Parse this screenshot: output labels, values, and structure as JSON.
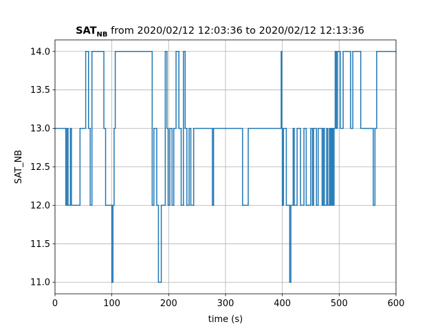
{
  "chart_data": {
    "type": "line",
    "step": true,
    "title": {
      "main": "SAT",
      "subscript": "NB",
      "rest": " from 2020/02/12 12:03:36 to 2020/02/12 12:13:36"
    },
    "xlabel": "time (s)",
    "ylabel": "SAT_NB",
    "xlim": [
      0,
      600
    ],
    "ylim": [
      10.85,
      14.15
    ],
    "xticks": [
      0,
      100,
      200,
      300,
      400,
      500,
      600
    ],
    "yticks": [
      11.0,
      11.5,
      12.0,
      12.5,
      13.0,
      13.5,
      14.0
    ],
    "grid": true,
    "color": "#1f77b4",
    "x": [
      0,
      19,
      21,
      23,
      27,
      29,
      36,
      44,
      54,
      59,
      62,
      65,
      68,
      86,
      89,
      92,
      100,
      102,
      104,
      106,
      109,
      118,
      171,
      174,
      179,
      182,
      187,
      194,
      197,
      199,
      202,
      206,
      209,
      213,
      218,
      222,
      226,
      229,
      232,
      236,
      239,
      244,
      253,
      275,
      277,
      279,
      330,
      340,
      398,
      399,
      400,
      402,
      404,
      407,
      413,
      415,
      417,
      419,
      421,
      426,
      429,
      432,
      435,
      438,
      442,
      450,
      453,
      455,
      460,
      463,
      467,
      470,
      472,
      474,
      478,
      480,
      483,
      484,
      485,
      487,
      488,
      490,
      491,
      493,
      495,
      497,
      502,
      504,
      507,
      514,
      520,
      524,
      526,
      529,
      534,
      538,
      560,
      563,
      566,
      583,
      600
    ],
    "y": [
      13,
      12,
      13,
      12,
      13,
      12,
      12,
      13,
      14,
      13,
      12,
      14,
      14,
      13,
      12,
      12,
      11,
      12,
      13,
      14,
      14,
      14,
      12,
      13,
      12,
      11,
      12,
      14,
      13,
      12,
      13,
      12,
      13,
      14,
      13,
      12,
      14,
      13,
      12,
      13,
      12,
      13,
      13,
      13,
      12,
      13,
      12,
      13,
      14,
      13,
      12,
      13,
      13,
      12,
      11,
      12,
      12,
      13,
      12,
      13,
      13,
      12,
      12,
      13,
      12,
      13,
      12,
      13,
      12,
      13,
      13,
      12,
      13,
      12,
      13,
      12,
      13,
      12,
      13,
      12,
      13,
      12,
      13,
      14,
      13,
      14,
      13,
      13,
      14,
      14,
      13,
      14,
      14,
      14,
      14,
      13,
      12,
      13,
      14,
      14,
      14
    ]
  }
}
